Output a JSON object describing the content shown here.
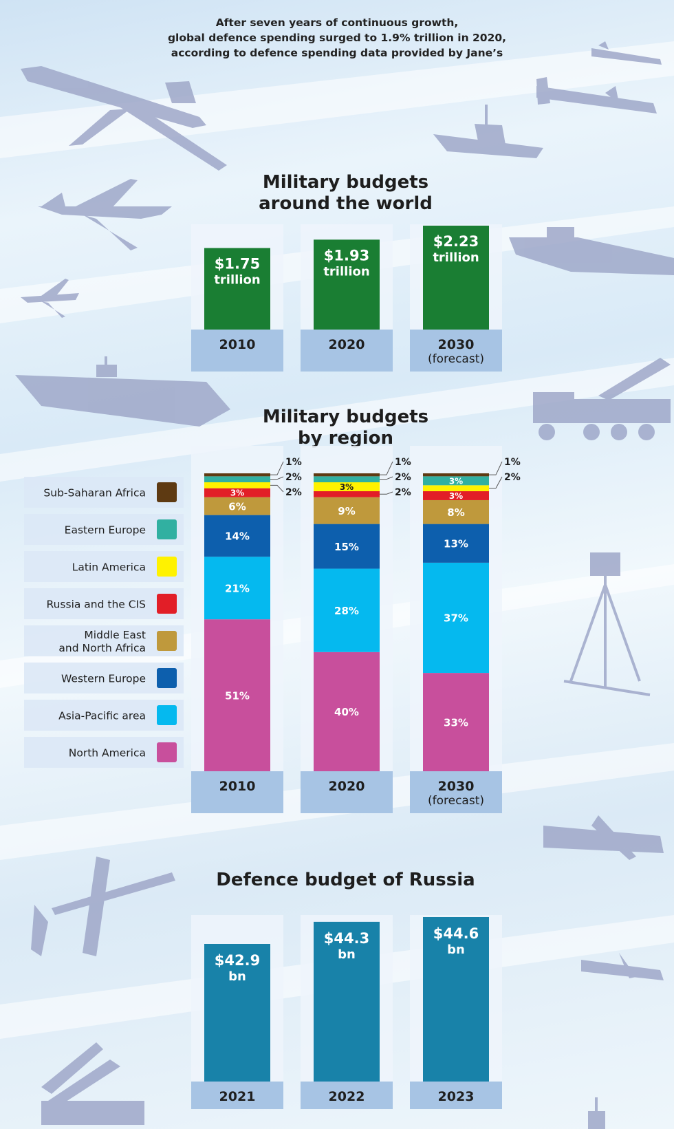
{
  "intro": {
    "line1": "After seven years of continuous growth,",
    "line2": "global defence spending surged to 1.9% trillion in 2020,",
    "line3": "according to defence spending data provided by Jane’s"
  },
  "colors": {
    "world_bar": "#1a7e33",
    "russia_bar": "#1882a9",
    "column_shade": "#a7c4e4",
    "column_bg": "#eef4fb"
  },
  "icons": [
    "bomber-plane-icon",
    "fighter-jet-icon",
    "cruise-missile-icon",
    "warship-icon",
    "submarine-icon",
    "aircraft-carrier-icon",
    "missile-launcher-truck-icon",
    "radar-tower-icon",
    "drone-icon",
    "air-defense-system-icon"
  ],
  "chart_data": [
    {
      "type": "bar",
      "title": "Military budgets around the world",
      "title_line1": "Military budgets",
      "title_line2": "around the world",
      "categories": [
        "2010",
        "2020",
        "2030"
      ],
      "category_notes": [
        "",
        "",
        "(forecast)"
      ],
      "values": [
        1.75,
        1.93,
        2.23
      ],
      "value_labels": [
        "$1.75",
        "$1.93",
        "$2.23"
      ],
      "unit": "trillion",
      "ylabel": "USD trillion"
    },
    {
      "type": "bar",
      "stacked": true,
      "title": "Military budgets by region",
      "title_line1": "Military budgets",
      "title_line2": "by region",
      "categories": [
        "2010",
        "2020",
        "2030"
      ],
      "category_notes": [
        "",
        "",
        "(forecast)"
      ],
      "unit": "%",
      "series": [
        {
          "name": "North America",
          "color": "#c84f9c",
          "values": [
            51,
            40,
            33
          ]
        },
        {
          "name": "Asia-Pacific area",
          "color": "#05b9ef",
          "values": [
            21,
            28,
            37
          ]
        },
        {
          "name": "Western Europe",
          "color": "#0d5fad",
          "values": [
            14,
            15,
            13
          ]
        },
        {
          "name": "Middle East\nand North Africa",
          "color": "#bf993c",
          "values": [
            6,
            9,
            8
          ]
        },
        {
          "name": "Russia and the CIS",
          "color": "#e21e27",
          "values": [
            3,
            2,
            3
          ]
        },
        {
          "name": "Latin America",
          "color": "#fff200",
          "values": [
            2,
            3,
            2
          ]
        },
        {
          "name": "Eastern Europe",
          "color": "#31b0a1",
          "values": [
            2,
            2,
            3
          ]
        },
        {
          "name": "Sub-Saharan Africa",
          "color": "#5e3a12",
          "values": [
            1,
            1,
            1
          ]
        }
      ],
      "legend_order": [
        "Sub-Saharan Africa",
        "Eastern Europe",
        "Latin America",
        "Russia and the CIS",
        "Middle East\nand North Africa",
        "Western Europe",
        "Asia-Pacific area",
        "North America"
      ]
    },
    {
      "type": "bar",
      "title": "Defence budget of Russia",
      "categories": [
        "2021",
        "2022",
        "2023"
      ],
      "values": [
        42.9,
        44.3,
        44.6
      ],
      "value_labels": [
        "$42.9",
        "$44.3",
        "$44.6"
      ],
      "unit": "bn",
      "ylabel": "USD billion"
    }
  ]
}
